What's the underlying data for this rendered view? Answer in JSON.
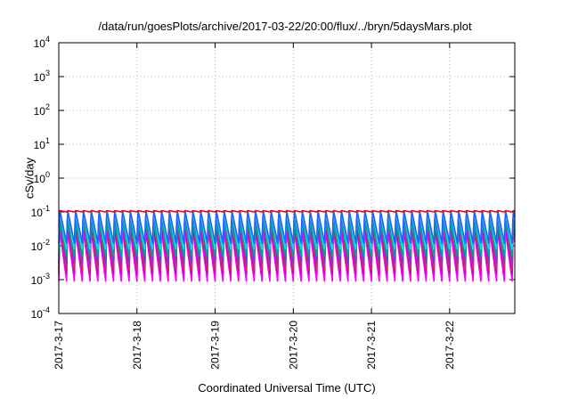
{
  "chart_data": {
    "type": "line",
    "title": "/data/run/goesPlots/archive/2017-03-22/20:00/flux/../bryn/5daysMars.plot",
    "xlabel": "Coordinated Universal Time (UTC)",
    "ylabel": "cSv/day",
    "yscale": "log",
    "ylim": [
      0.0001,
      10000
    ],
    "yticks": [
      {
        "base": "10",
        "exp": "-4"
      },
      {
        "base": "10",
        "exp": "-3"
      },
      {
        "base": "10",
        "exp": "-2"
      },
      {
        "base": "10",
        "exp": "-1"
      },
      {
        "base": "10",
        "exp": "0"
      },
      {
        "base": "10",
        "exp": "1"
      },
      {
        "base": "10",
        "exp": "2"
      },
      {
        "base": "10",
        "exp": "3"
      },
      {
        "base": "10",
        "exp": "4"
      }
    ],
    "xlim": [
      "2017-03-17 00:00",
      "2017-03-22 20:00"
    ],
    "xticks": [
      "2017-3-17",
      "2017-3-18",
      "2017-3-19",
      "2017-3-20",
      "2017-3-21",
      "2017-3-22"
    ],
    "grid": true,
    "legend": "none",
    "period_hours": 2.4,
    "series": [
      {
        "color": "#ff00ff",
        "peak": 0.03,
        "trough": 0.0009
      },
      {
        "color": "#c000c0",
        "peak": 0.045,
        "trough": 0.0015
      },
      {
        "color": "#d03050",
        "peak": 0.06,
        "trough": 0.002
      },
      {
        "color": "#7a3cc8",
        "peak": 0.08,
        "trough": 0.003
      },
      {
        "color": "#00a0a0",
        "peak": 0.05,
        "trough": 0.005
      },
      {
        "color": "#00e0e0",
        "peak": 0.1,
        "trough": 0.008
      },
      {
        "color": "#2060ff",
        "peak": 0.12,
        "trough": 0.012
      },
      {
        "color": "#ff0000",
        "peak": 0.11,
        "trough": 0.1
      }
    ]
  }
}
